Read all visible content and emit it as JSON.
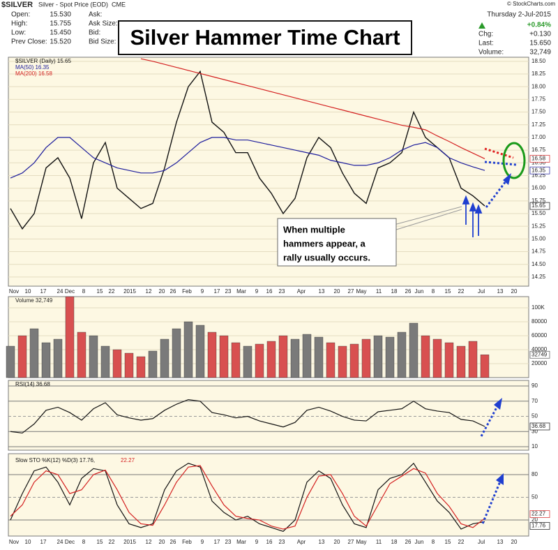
{
  "header": {
    "symbol": "$SILVER",
    "name": "Silver - Spot Price (EOD)",
    "exchange": "CME",
    "source": "© StockCharts.com",
    "date": "Thursday  2-Jul-2015",
    "change_pct": "+0.84%",
    "fields": [
      [
        "Open:",
        "15.530"
      ],
      [
        "High:",
        "15.755"
      ],
      [
        "Low:",
        "15.450"
      ],
      [
        "Prev Close:",
        "15.520"
      ]
    ],
    "quote_fields": [
      "Ask:",
      "Ask Size:",
      "Bid:",
      "Bid Size:"
    ],
    "stats": [
      [
        "Chg:",
        "+0.130"
      ],
      [
        "Last:",
        "15.650"
      ],
      [
        "Volume:",
        "32,749"
      ]
    ]
  },
  "title": "Silver Hammer Time Chart",
  "annotation": [
    "When multiple",
    "hammers appear, a",
    "rally usually occurs."
  ],
  "date_labels": [
    "Nov",
    "10",
    "17",
    "24",
    "Dec",
    "8",
    "15",
    "22",
    "2015",
    "12",
    "20",
    "26",
    "Feb",
    "9",
    "17",
    "23",
    "Mar",
    "9",
    "16",
    "23",
    "Apr",
    "13",
    "20",
    "27",
    "May",
    "11",
    "18",
    "26",
    "Jun",
    "8",
    "15",
    "22",
    "Jul",
    "13",
    "20"
  ],
  "chart_data": [
    {
      "type": "line",
      "ylim": [
        14.07,
        18.58
      ],
      "yticks": [
        {
          "value": 18.5,
          "label": "18.50"
        },
        {
          "value": 18.25,
          "label": "18.25"
        },
        {
          "value": 18,
          "label": "18.00"
        },
        {
          "value": 17.75,
          "label": "17.75"
        },
        {
          "value": 17.5,
          "label": "17.50"
        },
        {
          "value": 17.25,
          "label": "17.25"
        },
        {
          "value": 17,
          "label": "17.00"
        },
        {
          "value": 16.75,
          "label": "16.75"
        },
        {
          "value": 16.5,
          "label": "16.50"
        },
        {
          "value": 16.25,
          "label": "16.25"
        },
        {
          "value": 16,
          "label": "16.00"
        },
        {
          "value": 15.75,
          "label": "15.75"
        },
        {
          "value": 15.5,
          "label": "15.50"
        },
        {
          "value": 15.25,
          "label": "15.25"
        },
        {
          "value": 15,
          "label": "15.00"
        },
        {
          "value": 14.75,
          "label": "14.75"
        },
        {
          "value": 14.5,
          "label": "14.50"
        },
        {
          "value": 14.25,
          "label": "14.25"
        }
      ],
      "series": [
        {
          "name": "$SILVER (Daily) 15.65",
          "color": "#111111",
          "end_label": "15.65",
          "values": [
            15.6,
            15.2,
            15.5,
            16.4,
            16.6,
            16.2,
            15.4,
            16.5,
            16.9,
            16.0,
            15.8,
            15.6,
            15.7,
            16.4,
            17.3,
            18.0,
            18.3,
            17.3,
            17.1,
            16.7,
            16.7,
            16.2,
            15.9,
            15.5,
            15.8,
            16.6,
            17.0,
            16.8,
            16.3,
            15.9,
            15.7,
            16.4,
            16.5,
            16.7,
            17.5,
            17.0,
            16.8,
            16.6,
            16.0,
            15.85,
            15.65
          ]
        },
        {
          "name": "MA(50) 16.35",
          "color": "#1c1c9c",
          "end_label": "16.35",
          "values": [
            16.2,
            16.3,
            16.5,
            16.8,
            17.0,
            17.0,
            16.8,
            16.6,
            16.5,
            16.4,
            16.35,
            16.3,
            16.3,
            16.35,
            16.5,
            16.7,
            16.9,
            17.0,
            17.0,
            16.95,
            16.95,
            16.9,
            16.85,
            16.8,
            16.75,
            16.7,
            16.65,
            16.55,
            16.5,
            16.45,
            16.45,
            16.5,
            16.6,
            16.75,
            16.85,
            16.9,
            16.8,
            16.6,
            16.5,
            16.42,
            16.35
          ]
        },
        {
          "name": "MA(200) 16.58",
          "color": "#d42020",
          "end_label": "16.58",
          "values": [
            null,
            null,
            null,
            null,
            null,
            null,
            null,
            null,
            null,
            null,
            null,
            18.55,
            18.5,
            18.44,
            18.38,
            18.32,
            18.26,
            18.2,
            18.14,
            18.08,
            18.02,
            17.96,
            17.9,
            17.84,
            17.78,
            17.72,
            17.66,
            17.6,
            17.54,
            17.48,
            17.42,
            17.36,
            17.3,
            17.24,
            17.2,
            17.15,
            17.03,
            16.92,
            16.8,
            16.69,
            16.58
          ]
        }
      ]
    },
    {
      "type": "bar",
      "ylim": [
        0,
        116000
      ],
      "yticks": [
        {
          "value": 100000,
          "label": "100K"
        },
        80000,
        60000,
        40000,
        20000
      ],
      "up_color": "#7a7a7a",
      "down_color": "#d85050",
      "series": [
        {
          "name": "Volume 32,749",
          "end_label": "32749",
          "values": [
            45000,
            60000,
            70000,
            50000,
            55000,
            120000,
            65000,
            60000,
            45000,
            40000,
            35000,
            30000,
            38000,
            55000,
            70000,
            80000,
            75000,
            65000,
            60000,
            50000,
            45000,
            48000,
            52000,
            60000,
            55000,
            62000,
            58000,
            50000,
            45000,
            48000,
            55000,
            60000,
            58000,
            65000,
            78000,
            60000,
            55000,
            50000,
            45000,
            52000,
            32749
          ]
        }
      ]
    },
    {
      "type": "line",
      "ylim": [
        5.4,
        97.4
      ],
      "yticks": [
        90,
        70,
        50,
        30,
        10
      ],
      "series": [
        {
          "name": "RSI(14) 36.68",
          "color": "#111111",
          "end_label": "36.68",
          "values": [
            30,
            28,
            40,
            58,
            62,
            55,
            45,
            60,
            68,
            52,
            48,
            45,
            47,
            58,
            66,
            72,
            70,
            55,
            52,
            48,
            50,
            44,
            40,
            36,
            42,
            58,
            62,
            57,
            50,
            45,
            44,
            56,
            58,
            60,
            70,
            60,
            57,
            55,
            46,
            44,
            36.68
          ]
        }
      ]
    },
    {
      "type": "line",
      "ylim": [
        -1.2,
        107.7
      ],
      "yticks": [
        80,
        50,
        20
      ],
      "series": [
        {
          "name": "Slow STO %K(12) %D(3) 17.76,",
          "color": "#111111",
          "end_label": "17.76",
          "values": [
            20,
            55,
            85,
            90,
            70,
            40,
            75,
            88,
            85,
            40,
            15,
            10,
            15,
            60,
            85,
            95,
            90,
            45,
            30,
            20,
            25,
            15,
            10,
            5,
            20,
            70,
            85,
            75,
            40,
            15,
            10,
            60,
            75,
            80,
            95,
            70,
            45,
            30,
            8,
            15,
            17.76
          ]
        },
        {
          "name": "22.27",
          "color": "#d42020",
          "end_label": "22.27",
          "values": [
            25,
            40,
            70,
            85,
            80,
            55,
            60,
            80,
            86,
            60,
            30,
            15,
            13,
            40,
            70,
            90,
            92,
            65,
            40,
            25,
            22,
            20,
            12,
            8,
            12,
            50,
            78,
            80,
            55,
            25,
            12,
            40,
            68,
            78,
            88,
            82,
            55,
            38,
            15,
            10,
            22.27
          ]
        }
      ]
    }
  ]
}
